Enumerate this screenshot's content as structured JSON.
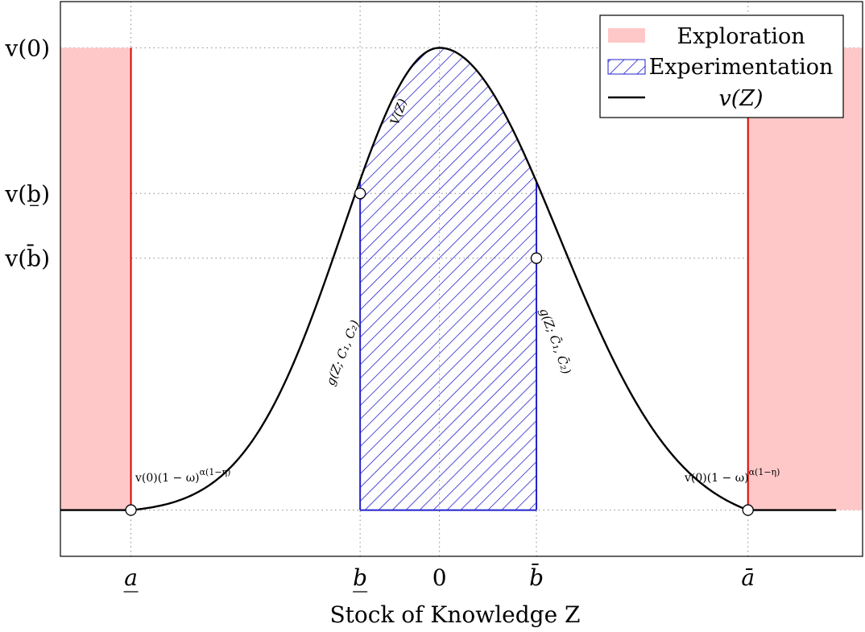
{
  "chart_data": {
    "type": "area",
    "title": "",
    "xlabel": "Stock of Knowledge Z",
    "ylabel": "",
    "grid": true,
    "legend_position": "top-right",
    "x_ticks": [
      "a",
      "b",
      "0",
      "b̄",
      "ā"
    ],
    "y_ticks": [
      "v(0)",
      "v(b)",
      "v(b̄)",
      ""
    ],
    "x_tick_values": [
      -3.5,
      -0.9,
      0,
      1.1,
      3.5
    ],
    "y_tick_values": [
      1.0,
      0.685,
      0.545,
      0.0
    ],
    "xlim": [
      -4.3,
      4.8
    ],
    "ylim": [
      -0.1,
      1.1
    ],
    "curve": {
      "name": "v(Z)",
      "peak": [
        0,
        1.0
      ],
      "left_sigma": 1.1,
      "right_sigma": 1.36,
      "left_exploration_floor": [
        -4.5,
        -3.5
      ],
      "right_exploration_floor": [
        3.5,
        4.5
      ]
    },
    "regions": [
      {
        "name": "Exploration",
        "x": [
          -5.5,
          -3.5
        ],
        "y": [
          0,
          1.0
        ],
        "color": "#ffc8c8"
      },
      {
        "name": "Experimentation",
        "x": [
          -0.9,
          1.1
        ],
        "color": "#2222cc"
      },
      {
        "name": "Exploration",
        "x": [
          3.5,
          5.5
        ],
        "y": [
          0,
          1.0
        ],
        "color": "#ffc8c8"
      }
    ],
    "points": [
      {
        "x": -3.5,
        "y": 0.0
      },
      {
        "x": -0.9,
        "y": 0.685
      },
      {
        "x": 1.1,
        "y": 0.545
      },
      {
        "x": 3.5,
        "y": 0.0
      }
    ],
    "legend": [
      "Exploration",
      "Experimentation",
      "v(Z)"
    ],
    "annotations": {
      "left_region": "v(0)(1 − ω)",
      "right_region": "v(0)(1 − ω)",
      "exponent": "α(1−η)",
      "curve_center": "V(Z)",
      "curve_left": "g(Z; C₁, C₂)",
      "curve_right": "g(Z; C̄₁, C̄₂)"
    },
    "colors": {
      "exploration_fill": "#ffc8c8",
      "exploration_line": "#e00000",
      "experimentation_hatch": "#2222cc",
      "curve": "#000000"
    }
  }
}
